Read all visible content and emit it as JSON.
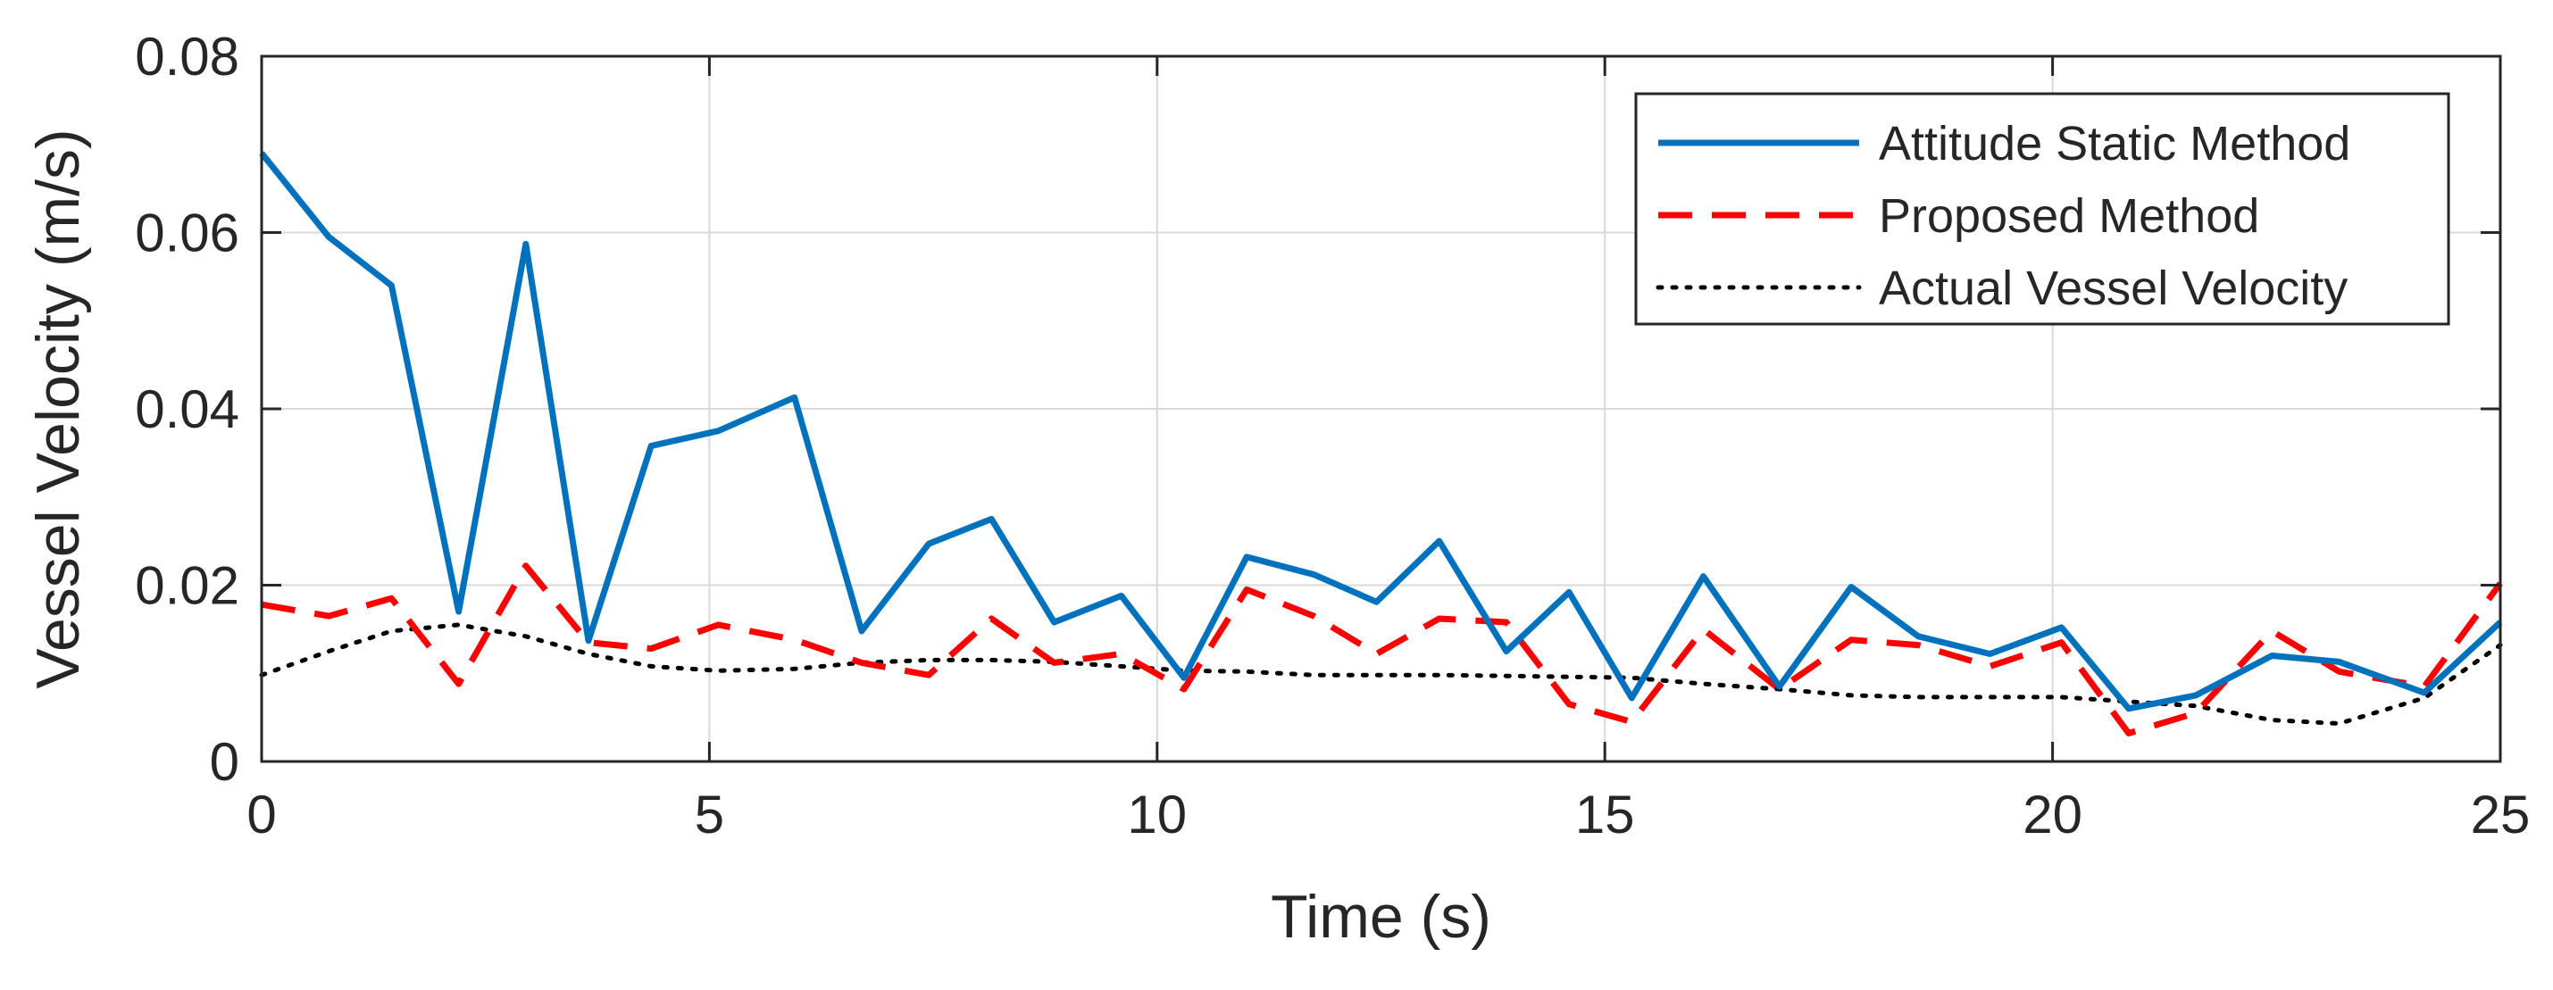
{
  "chart_data": {
    "type": "line",
    "title": "",
    "xlabel": "Time (s)",
    "ylabel": "Vessel Velocity (m/s)",
    "xlim": [
      0,
      25
    ],
    "ylim": [
      0,
      0.08
    ],
    "xticks": [
      0,
      5,
      10,
      15,
      20,
      25
    ],
    "yticks": [
      0,
      0.02,
      0.04,
      0.06,
      0.08
    ],
    "xtick_labels": [
      "0",
      "5",
      "10",
      "15",
      "20",
      "25"
    ],
    "ytick_labels": [
      "0",
      "0.02",
      "0.04",
      "0.06",
      "0.08"
    ],
    "grid": true,
    "legend_position": "top-right",
    "series": [
      {
        "name": "Attitude Static Method",
        "color": "#0072BD",
        "style": "solid",
        "x": [
          0,
          0.75,
          1.45,
          2.2,
          2.95,
          3.65,
          4.35,
          5.1,
          5.95,
          6.7,
          7.45,
          8.15,
          8.85,
          9.6,
          10.3,
          11.0,
          11.75,
          12.45,
          13.15,
          13.9,
          14.6,
          15.3,
          16.1,
          16.95,
          17.75,
          18.5,
          19.3,
          20.1,
          20.85,
          21.6,
          22.45,
          23.2,
          24.15,
          25.0
        ],
        "y": [
          0.069,
          0.0595,
          0.054,
          0.017,
          0.0587,
          0.0137,
          0.0358,
          0.0375,
          0.0413,
          0.0148,
          0.0247,
          0.0275,
          0.0158,
          0.0188,
          0.0095,
          0.0232,
          0.0212,
          0.0181,
          0.025,
          0.0125,
          0.0192,
          0.0072,
          0.021,
          0.0085,
          0.0198,
          0.0142,
          0.0122,
          0.0152,
          0.006,
          0.0075,
          0.012,
          0.0113,
          0.0078,
          0.0158
        ]
      },
      {
        "name": "Proposed Method",
        "color": "#FF0000",
        "style": "dashed",
        "x": [
          0,
          0.75,
          1.45,
          2.2,
          2.95,
          3.65,
          4.35,
          5.1,
          5.95,
          6.7,
          7.45,
          8.15,
          8.85,
          9.6,
          10.3,
          11.0,
          11.75,
          12.45,
          13.15,
          13.9,
          14.6,
          15.3,
          16.1,
          16.95,
          17.75,
          18.5,
          19.3,
          20.1,
          20.85,
          21.6,
          22.45,
          23.2,
          24.15,
          25.0
        ],
        "y": [
          0.0178,
          0.0165,
          0.0185,
          0.0088,
          0.0222,
          0.0135,
          0.0128,
          0.0155,
          0.0138,
          0.0112,
          0.0098,
          0.0162,
          0.0112,
          0.0122,
          0.0082,
          0.0195,
          0.0165,
          0.0122,
          0.0162,
          0.0158,
          0.0065,
          0.0045,
          0.015,
          0.0082,
          0.0138,
          0.0132,
          0.0108,
          0.0135,
          0.0032,
          0.0055,
          0.0148,
          0.0102,
          0.0085,
          0.0202
        ]
      },
      {
        "name": "Actual Vessel Velocity",
        "color": "#000000",
        "style": "dotted",
        "x": [
          0,
          0.75,
          1.45,
          2.2,
          2.95,
          3.65,
          4.35,
          5.1,
          5.95,
          6.7,
          7.45,
          8.15,
          8.85,
          9.6,
          10.3,
          11.0,
          11.75,
          12.45,
          13.15,
          13.9,
          14.6,
          15.3,
          16.1,
          16.95,
          17.75,
          18.5,
          19.3,
          20.1,
          20.85,
          21.6,
          22.45,
          23.2,
          24.15,
          25.0
        ],
        "y": [
          0.0098,
          0.0125,
          0.0148,
          0.0155,
          0.0142,
          0.0122,
          0.0108,
          0.0103,
          0.0105,
          0.0112,
          0.0115,
          0.0115,
          0.0113,
          0.0108,
          0.0103,
          0.0102,
          0.0098,
          0.0098,
          0.0098,
          0.0097,
          0.0096,
          0.0095,
          0.0088,
          0.0082,
          0.0075,
          0.0073,
          0.0073,
          0.0073,
          0.0068,
          0.0063,
          0.0047,
          0.0043,
          0.0072,
          0.0132
        ]
      }
    ]
  }
}
